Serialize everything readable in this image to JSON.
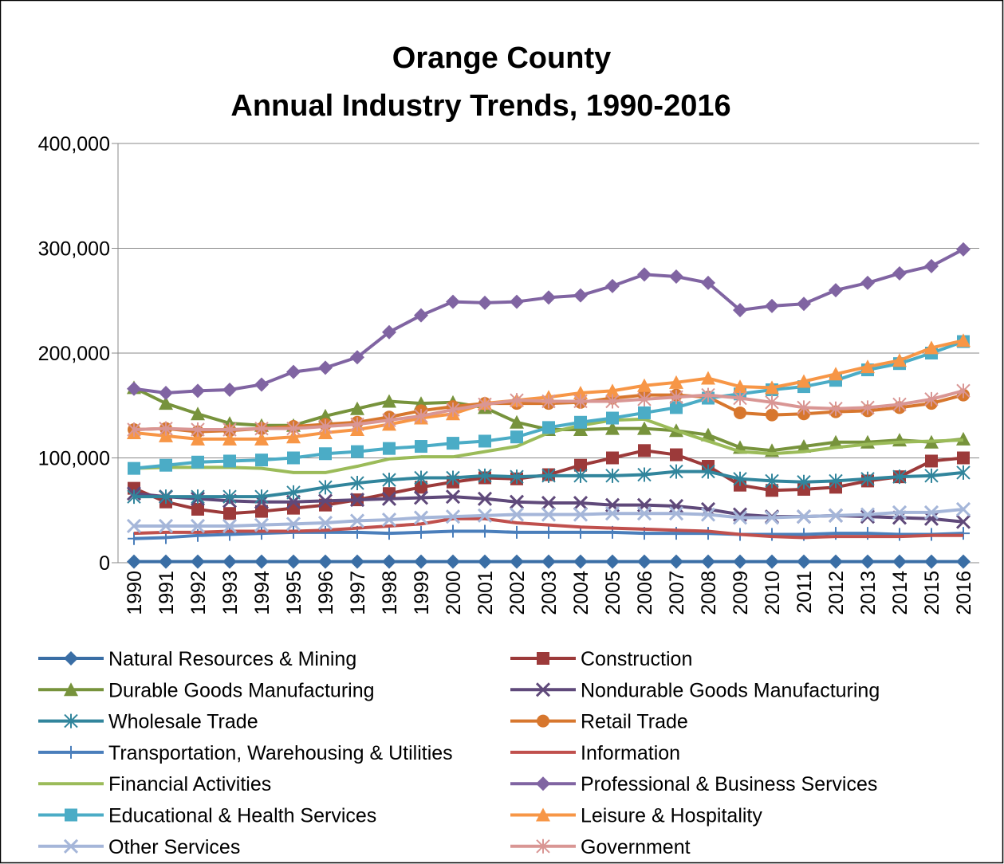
{
  "chart_data": {
    "type": "line",
    "title": [
      "Orange County",
      "Annual Industry Trends, 1990-2016"
    ],
    "categories": [
      "1990",
      "1991",
      "1992",
      "1993",
      "1994",
      "1995",
      "1996",
      "1997",
      "1998",
      "1999",
      "2000",
      "2001",
      "2002",
      "2003",
      "2004",
      "2005",
      "2006",
      "2007",
      "2008",
      "2009",
      "2010",
      "2011",
      "2012",
      "2013",
      "2014",
      "2015",
      "2016"
    ],
    "ylim": [
      0,
      400000
    ],
    "yticks": [
      0,
      {
        "value": 100000,
        "label": "100,000"
      },
      {
        "value": 200000,
        "label": "200,000"
      },
      {
        "value": 300000,
        "label": "300,000"
      },
      {
        "value": 400000,
        "label": "400,000"
      }
    ],
    "grid": true,
    "legend": "bottom",
    "series": [
      {
        "name": "Natural Resources & Mining",
        "color": "#3a6ea5",
        "marker": "diamond",
        "values": [
          1000,
          1000,
          1000,
          1000,
          1000,
          1000,
          1000,
          1000,
          1000,
          1000,
          1000,
          1000,
          1000,
          1000,
          1000,
          1000,
          1000,
          1000,
          1000,
          1000,
          1000,
          1000,
          1000,
          1000,
          1000,
          1000,
          1000
        ]
      },
      {
        "name": "Construction",
        "color": "#9c3a3a",
        "marker": "square",
        "values": [
          71000,
          58000,
          51000,
          47000,
          49000,
          52000,
          55000,
          60000,
          66000,
          72000,
          77000,
          81000,
          80000,
          84000,
          93000,
          100000,
          107000,
          103000,
          92000,
          74000,
          69000,
          70000,
          72000,
          78000,
          82000,
          97000,
          100000
        ]
      },
      {
        "name": "Durable Goods Manufacturing",
        "color": "#77933c",
        "marker": "triangle",
        "values": [
          167000,
          152000,
          142000,
          133000,
          131000,
          131000,
          140000,
          147000,
          154000,
          152000,
          153000,
          148000,
          134000,
          127000,
          127000,
          128000,
          128000,
          126000,
          122000,
          110000,
          107000,
          111000,
          115000,
          115000,
          117000,
          115000,
          118000
        ]
      },
      {
        "name": "Nondurable Goods Manufacturing",
        "color": "#5f497a",
        "marker": "x",
        "values": [
          66000,
          63000,
          61000,
          59000,
          58000,
          58000,
          59000,
          60000,
          61000,
          62000,
          63000,
          61000,
          58000,
          57000,
          57000,
          55000,
          55000,
          54000,
          51000,
          46000,
          44000,
          44000,
          45000,
          44000,
          43000,
          42000,
          39000
        ]
      },
      {
        "name": "Wholesale Trade",
        "color": "#31859c",
        "marker": "star",
        "values": [
          63000,
          63000,
          63000,
          63000,
          63000,
          67000,
          72000,
          76000,
          79000,
          81000,
          81000,
          83000,
          82000,
          83000,
          83000,
          83000,
          84000,
          87000,
          87000,
          80000,
          78000,
          77000,
          78000,
          80000,
          82000,
          83000,
          86000
        ]
      },
      {
        "name": "Retail Trade",
        "color": "#d7772e",
        "marker": "circle",
        "values": [
          127000,
          128000,
          125000,
          126000,
          128000,
          130000,
          132000,
          134000,
          139000,
          145000,
          149000,
          152000,
          152000,
          152000,
          153000,
          157000,
          160000,
          160000,
          158000,
          143000,
          141000,
          142000,
          144000,
          145000,
          148000,
          152000,
          160000
        ]
      },
      {
        "name": "Transportation, Warehousing & Utilities",
        "color": "#4a7ebb",
        "marker": "plus",
        "values": [
          23000,
          24000,
          26000,
          27000,
          28000,
          29000,
          29000,
          29000,
          28000,
          29000,
          30000,
          30000,
          29000,
          29000,
          29000,
          29000,
          28000,
          28000,
          28000,
          27000,
          27000,
          27000,
          28000,
          28000,
          27000,
          27000,
          28000
        ]
      },
      {
        "name": "Information",
        "color": "#c0504d",
        "marker": "none",
        "values": [
          28000,
          29000,
          29000,
          30000,
          30000,
          30000,
          31000,
          33000,
          35000,
          37000,
          42000,
          42000,
          38000,
          36000,
          34000,
          33000,
          32000,
          31000,
          30000,
          27000,
          25000,
          24000,
          25000,
          25000,
          25000,
          26000,
          26000
        ]
      },
      {
        "name": "Financial Activities",
        "color": "#9bbb59",
        "marker": "none",
        "values": [
          90000,
          91000,
          91000,
          91000,
          90000,
          86000,
          86000,
          92000,
          99000,
          101000,
          101000,
          106000,
          111000,
          124000,
          131000,
          136000,
          137000,
          126000,
          116000,
          106000,
          104000,
          106000,
          110000,
          113000,
          115000,
          116000,
          117000
        ]
      },
      {
        "name": "Professional & Business Services",
        "color": "#8064a2",
        "marker": "diamond",
        "values": [
          166000,
          162000,
          164000,
          165000,
          170000,
          182000,
          186000,
          196000,
          220000,
          236000,
          249000,
          248000,
          249000,
          253000,
          255000,
          264000,
          275000,
          273000,
          267000,
          241000,
          245000,
          247000,
          260000,
          267000,
          276000,
          283000,
          299000
        ]
      },
      {
        "name": "Educational & Health Services",
        "color": "#4bacc6",
        "marker": "square",
        "values": [
          90000,
          93000,
          96000,
          97000,
          98000,
          100000,
          104000,
          106000,
          109000,
          111000,
          114000,
          116000,
          120000,
          129000,
          134000,
          138000,
          143000,
          148000,
          157000,
          161000,
          165000,
          168000,
          174000,
          184000,
          190000,
          200000,
          211000
        ]
      },
      {
        "name": "Leisure & Hospitality",
        "color": "#f79646",
        "marker": "triangle",
        "values": [
          124000,
          121000,
          118000,
          118000,
          118000,
          120000,
          124000,
          127000,
          132000,
          138000,
          142000,
          152000,
          155000,
          158000,
          162000,
          164000,
          169000,
          172000,
          176000,
          168000,
          167000,
          173000,
          180000,
          187000,
          193000,
          205000,
          212000
        ]
      },
      {
        "name": "Other Services",
        "color": "#a5b6d9",
        "marker": "x",
        "values": [
          35000,
          35000,
          35000,
          35000,
          36000,
          37000,
          38000,
          40000,
          41000,
          43000,
          44000,
          45000,
          46000,
          46000,
          46000,
          47000,
          47000,
          47000,
          46000,
          43000,
          43000,
          44000,
          45000,
          46000,
          48000,
          48000,
          51000
        ]
      },
      {
        "name": "Government",
        "color": "#d99694",
        "marker": "star",
        "values": [
          127000,
          128000,
          127000,
          127000,
          128000,
          128000,
          130000,
          132000,
          136000,
          140000,
          146000,
          151000,
          155000,
          154000,
          154000,
          154000,
          156000,
          158000,
          160000,
          157000,
          153000,
          148000,
          147000,
          148000,
          151000,
          156000,
          164000
        ]
      }
    ]
  }
}
